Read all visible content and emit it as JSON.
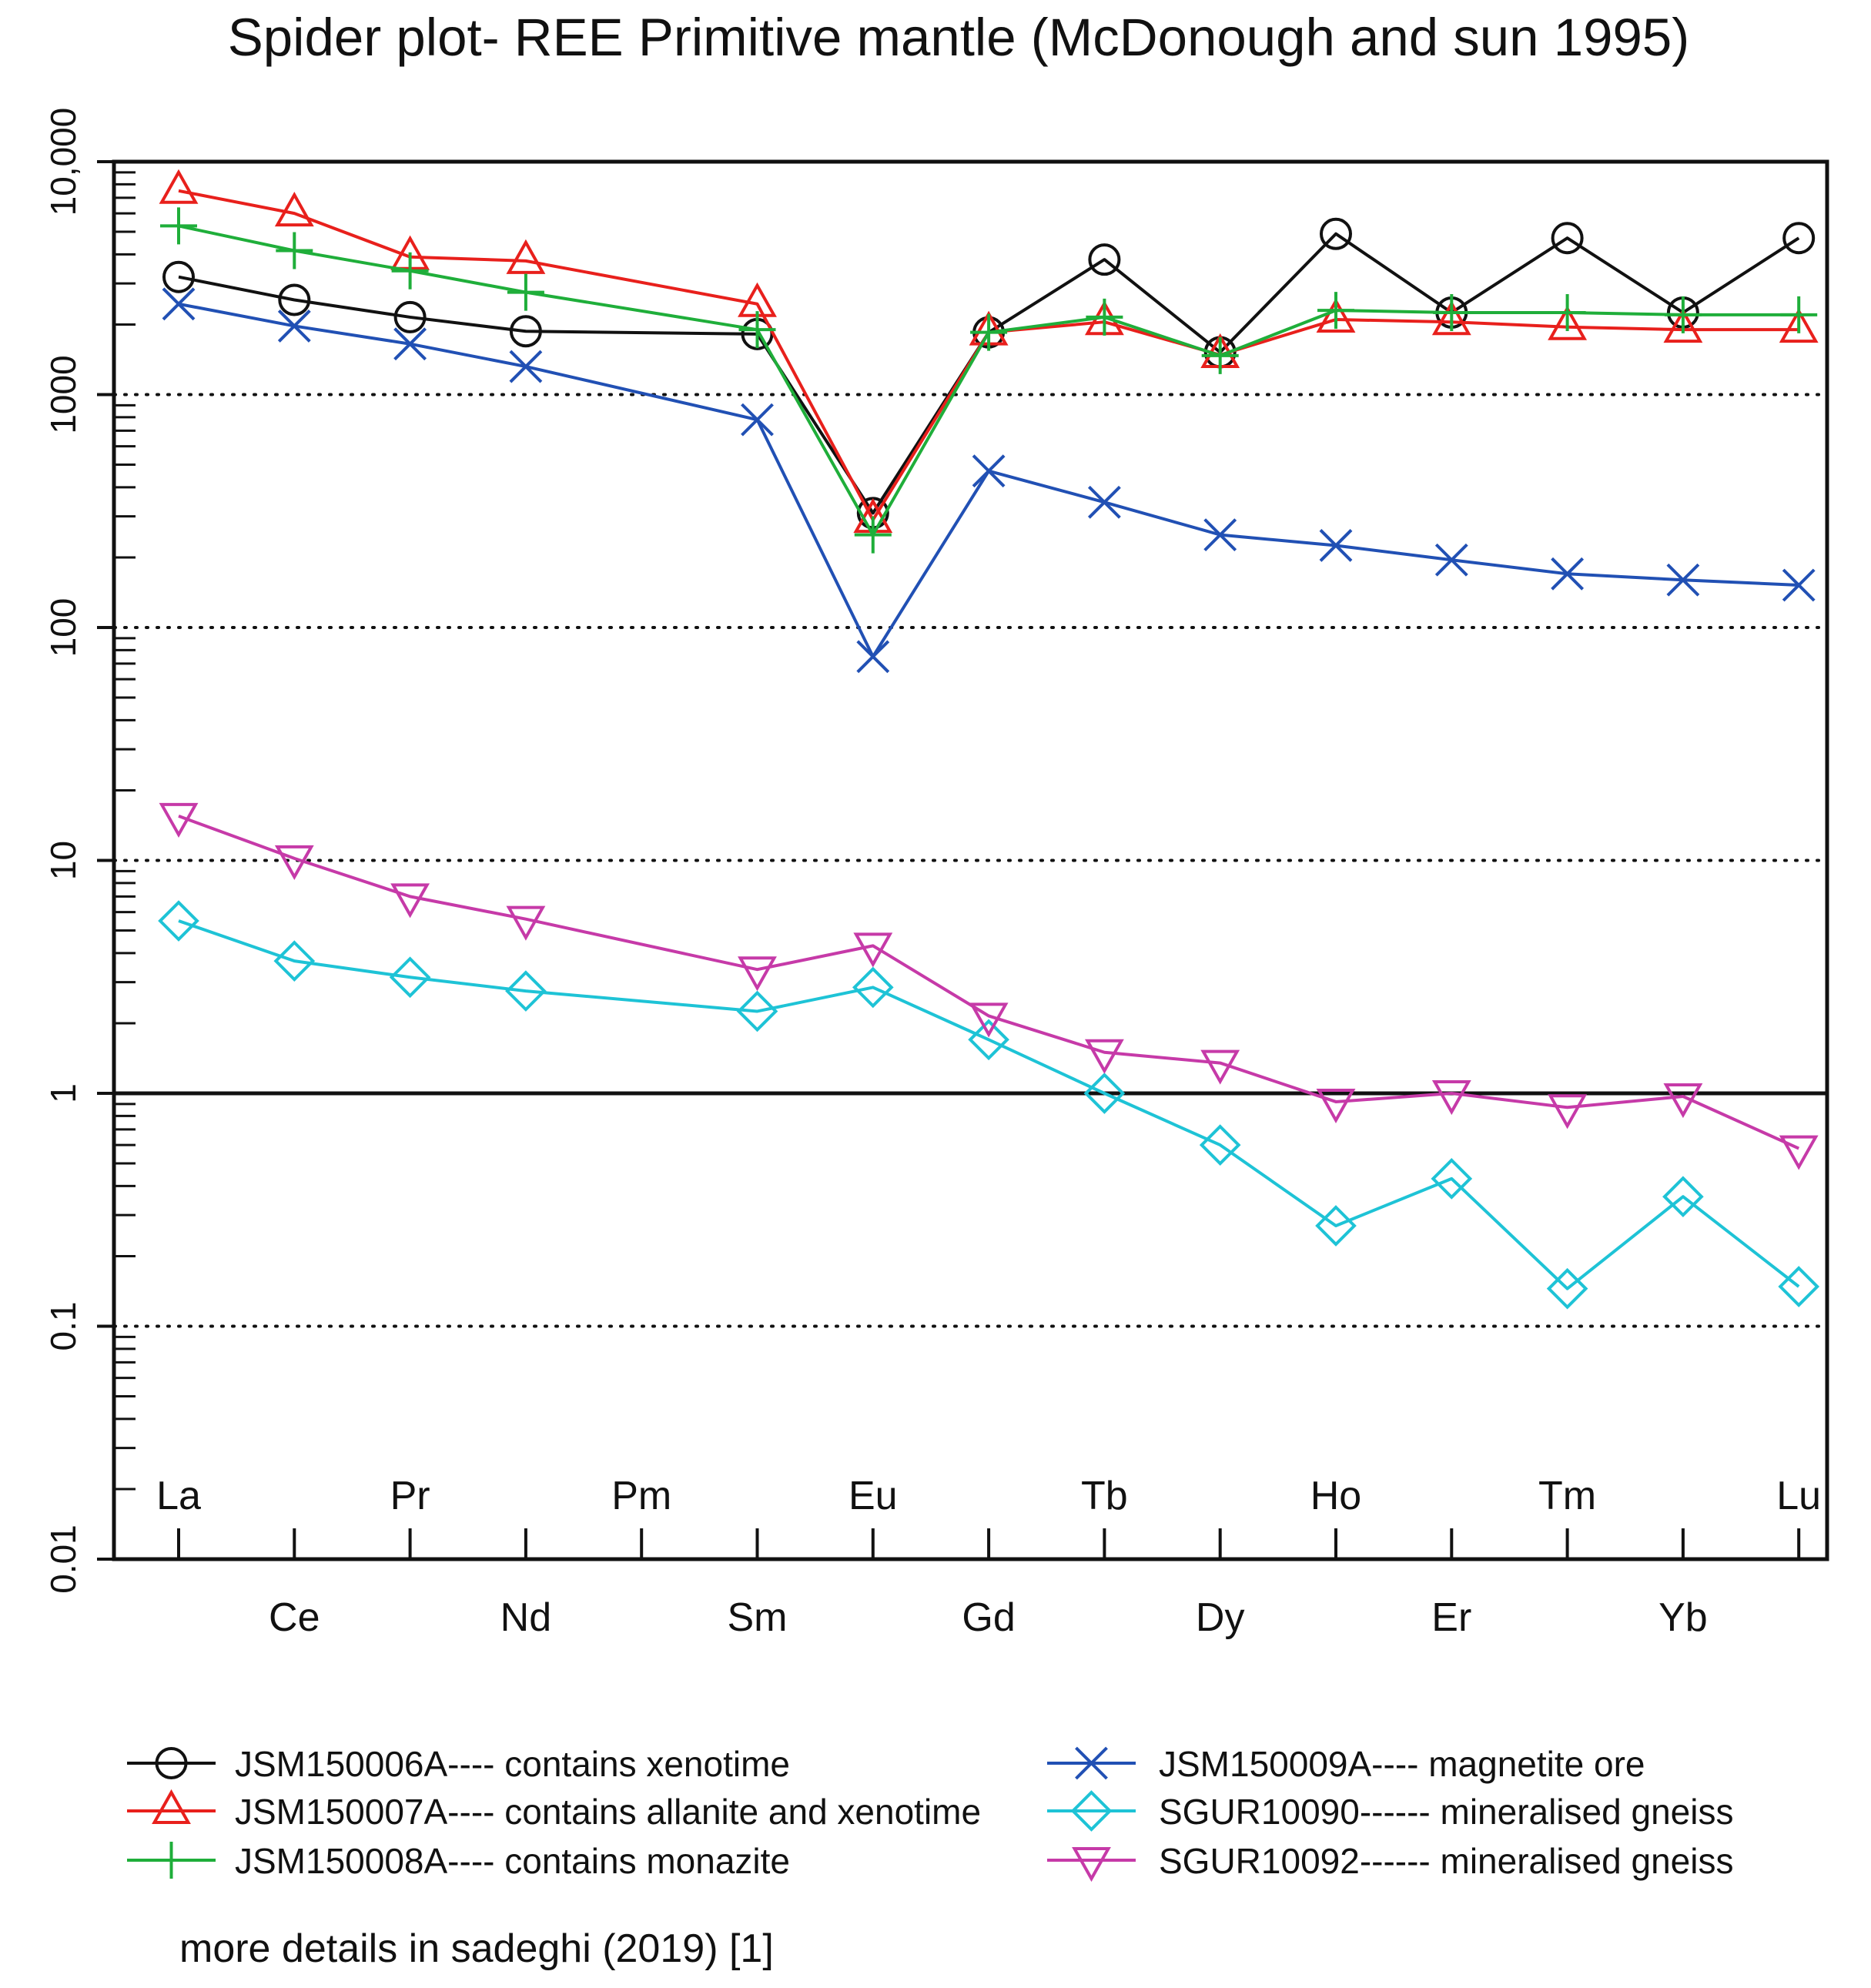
{
  "chart_data": {
    "type": "line",
    "title": "Spider plot- REE Primitive mantle (McDonough and sun 1995)",
    "y_scale": "log",
    "ylim": [
      0.01,
      10000
    ],
    "y_ticks": [
      0.01,
      0.1,
      1,
      10,
      100,
      1000,
      10000
    ],
    "y_tick_labels": [
      "0.01",
      "0.1",
      "1",
      "10",
      "100",
      "1000",
      "10,000"
    ],
    "dotted_gridlines_at": [
      0.1,
      10,
      100,
      1000
    ],
    "reference_line_at": 1,
    "categories": [
      "La",
      "Ce",
      "Pr",
      "Nd",
      "Pm",
      "Sm",
      "Eu",
      "Gd",
      "Tb",
      "Dy",
      "Ho",
      "Er",
      "Tm",
      "Yb",
      "Lu"
    ],
    "series": [
      {
        "name": "JSM150006A---- contains xenotime",
        "color": "#111111",
        "marker": "circle",
        "values": [
          3200,
          2550,
          2150,
          1870,
          null,
          1820,
          310,
          1850,
          3800,
          1520,
          4900,
          2250,
          4700,
          2250,
          4700
        ]
      },
      {
        "name": "JSM150007A---- contains allanite and xenotime",
        "color": "#e8201c",
        "marker": "triangle-up",
        "values": [
          7500,
          6000,
          3900,
          3750,
          null,
          2450,
          290,
          1850,
          2050,
          1480,
          2100,
          2050,
          1950,
          1900,
          1900
        ]
      },
      {
        "name": "JSM150008A---- contains monazite",
        "color": "#1fae3a",
        "marker": "plus",
        "values": [
          5300,
          4150,
          3400,
          2750,
          null,
          1900,
          250,
          1850,
          2150,
          1470,
          2300,
          2250,
          2250,
          2200,
          2200
        ]
      },
      {
        "name": "JSM150009A---- magnetite ore",
        "color": "#2150b4",
        "marker": "cross",
        "values": [
          2450,
          1970,
          1650,
          1320,
          null,
          780,
          75,
          470,
          345,
          250,
          225,
          195,
          170,
          160,
          152
        ]
      },
      {
        "name": "SGUR10090------ mineralised gneiss",
        "color": "#1ec3d6",
        "marker": "diamond",
        "values": [
          5.5,
          3.7,
          3.15,
          2.75,
          null,
          2.25,
          2.85,
          1.7,
          1.0,
          0.6,
          0.27,
          0.43,
          0.145,
          0.36,
          0.148
        ]
      },
      {
        "name": "SGUR10092------ mineralised gneiss",
        "color": "#c63aa8",
        "marker": "triangle-down",
        "values": [
          15.5,
          10.2,
          7.0,
          5.6,
          null,
          3.4,
          4.3,
          2.15,
          1.5,
          1.35,
          0.92,
          1.0,
          0.87,
          0.97,
          0.58
        ]
      }
    ]
  },
  "footer_note": "more details in sadeghi (2019) [1]"
}
